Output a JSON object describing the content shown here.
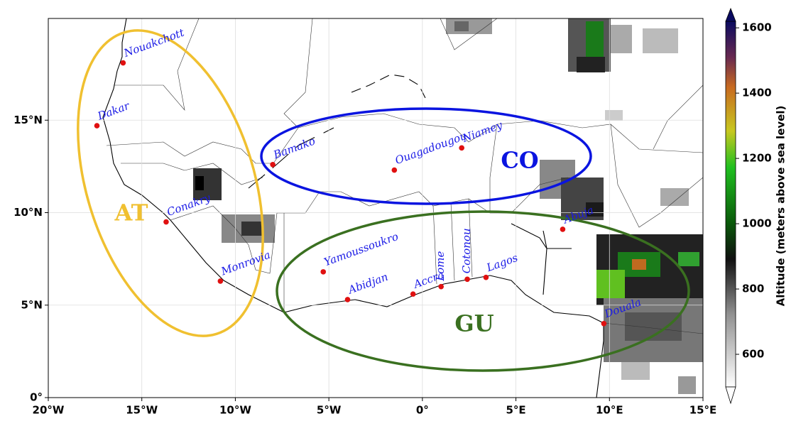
{
  "map": {
    "xlim": [
      -20,
      15
    ],
    "ylim": [
      0,
      20.5
    ],
    "xticks": [
      {
        "value": -20,
        "label": "20°W"
      },
      {
        "value": -15,
        "label": "15°W"
      },
      {
        "value": -10,
        "label": "10°W"
      },
      {
        "value": -5,
        "label": "5°W"
      },
      {
        "value": 0,
        "label": "0°"
      },
      {
        "value": 5,
        "label": "5°E"
      },
      {
        "value": 10,
        "label": "10°E"
      },
      {
        "value": 15,
        "label": "15°E"
      }
    ],
    "yticks": [
      {
        "value": 0,
        "label": "0°"
      },
      {
        "value": 5,
        "label": "5°N"
      },
      {
        "value": 10,
        "label": "10°N"
      },
      {
        "value": 15,
        "label": "15°N"
      }
    ],
    "cities": [
      {
        "name": "Nouakchott",
        "lon": -16.0,
        "lat": 18.1
      },
      {
        "name": "Dakar",
        "lon": -17.4,
        "lat": 14.7
      },
      {
        "name": "Bamako",
        "lon": -8.0,
        "lat": 12.6
      },
      {
        "name": "Conakry",
        "lon": -13.7,
        "lat": 9.5
      },
      {
        "name": "Monrovia",
        "lon": -10.8,
        "lat": 6.3
      },
      {
        "name": "Ouagadougou",
        "lon": -1.5,
        "lat": 12.3
      },
      {
        "name": "Niamey",
        "lon": 2.1,
        "lat": 13.5
      },
      {
        "name": "Yamoussoukro",
        "lon": -5.3,
        "lat": 6.8
      },
      {
        "name": "Abidjan",
        "lon": -4.0,
        "lat": 5.3
      },
      {
        "name": "Accra",
        "lon": -0.5,
        "lat": 5.6
      },
      {
        "name": "Lome",
        "lon": 1.0,
        "lat": 6.0
      },
      {
        "name": "Cotonou",
        "lon": 2.4,
        "lat": 6.4
      },
      {
        "name": "Lagos",
        "lon": 3.4,
        "lat": 6.5
      },
      {
        "name": "Abuja",
        "lon": 7.5,
        "lat": 9.1
      },
      {
        "name": "Douala",
        "lon": 9.7,
        "lat": 4.0
      }
    ],
    "regions": [
      {
        "label": "AT",
        "color": "#f0c030"
      },
      {
        "label": "CO",
        "color": "#0a14e0"
      },
      {
        "label": "GU",
        "color": "#3a7020"
      }
    ],
    "colorbar": {
      "label": "Altitude (meters above sea level)",
      "lim": [
        500,
        1620
      ],
      "ticks": [
        600,
        800,
        1000,
        1200,
        1400,
        1600
      ]
    }
  }
}
